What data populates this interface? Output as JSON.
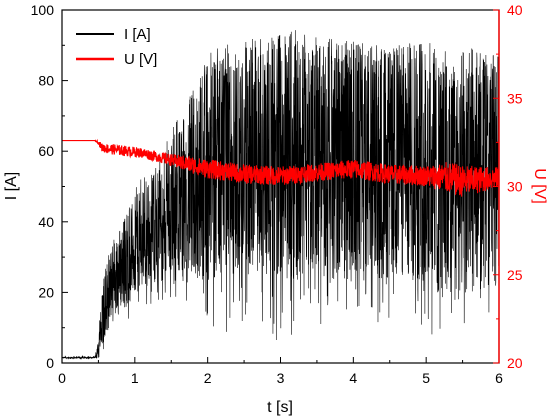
{
  "chart_data": {
    "type": "line",
    "xlabel": "t [s]",
    "ylabel_left": "I [A]",
    "ylabel_right": "U [V]",
    "xlim": [
      0,
      6
    ],
    "ylim_left": [
      0,
      100
    ],
    "ylim_right": [
      20,
      40
    ],
    "x_ticks": [
      0,
      1,
      2,
      3,
      4,
      5,
      6
    ],
    "y_left_ticks": [
      0,
      20,
      40,
      60,
      80,
      100
    ],
    "y_right_ticks": [
      20,
      25,
      30,
      35,
      40
    ],
    "grid": false,
    "legend_placement": "top-left",
    "legend": [
      {
        "label": "I [A]",
        "color": "#000000"
      },
      {
        "label": "U [V]",
        "color": "#ff0000"
      }
    ],
    "series": [
      {
        "name": "I [A]",
        "axis": "left",
        "color": "#000000",
        "style": "noisy",
        "x": [
          0,
          0.25,
          0.45,
          0.5,
          0.55,
          0.6,
          0.7,
          0.8,
          0.9,
          1.0,
          1.2,
          1.4,
          1.6,
          1.8,
          2.0,
          2.2,
          2.5,
          2.8,
          3.0,
          3.3,
          3.6,
          4.0,
          4.3,
          4.6,
          5.0,
          5.3,
          5.6,
          6.0
        ],
        "mean": [
          1.5,
          1.5,
          1.5,
          4,
          12,
          18,
          23,
          27,
          30,
          33,
          37,
          41,
          45,
          50,
          55,
          58,
          58,
          58,
          60,
          58,
          58,
          58,
          57,
          57,
          58,
          50,
          55,
          55
        ],
        "amp": [
          0.2,
          0.2,
          0.2,
          3,
          8,
          10,
          12,
          12,
          14,
          14,
          15,
          18,
          22,
          28,
          32,
          33,
          33,
          34,
          35,
          35,
          34,
          35,
          34,
          33,
          35,
          35,
          35,
          33
        ],
        "max": [
          2,
          2,
          2,
          8,
          20,
          28,
          35,
          40,
          45,
          50,
          55,
          62,
          70,
          82,
          89,
          90,
          92,
          93,
          95,
          94,
          92,
          91,
          90,
          90,
          92,
          88,
          90,
          88
        ],
        "min": [
          1,
          1,
          1,
          0,
          2,
          5,
          8,
          10,
          12,
          14,
          15,
          18,
          15,
          10,
          8,
          8,
          10,
          10,
          5,
          10,
          10,
          8,
          10,
          10,
          8,
          5,
          12,
          14
        ]
      },
      {
        "name": "U [V]",
        "axis": "right",
        "color": "#ff0000",
        "style": "noisy",
        "x": [
          0,
          0.45,
          0.5,
          0.55,
          0.7,
          0.9,
          1.1,
          1.3,
          1.5,
          1.7,
          2.0,
          2.5,
          3.0,
          3.5,
          4.0,
          4.5,
          5.0,
          5.3,
          5.5,
          6.0
        ],
        "mean": [
          32.6,
          32.6,
          32.5,
          32.2,
          32.1,
          32.0,
          31.9,
          31.7,
          31.5,
          31.3,
          31.0,
          30.7,
          30.6,
          30.8,
          31.0,
          30.7,
          30.6,
          30.5,
          30.3,
          30.5
        ],
        "amp": [
          0,
          0,
          0.1,
          0.25,
          0.3,
          0.3,
          0.3,
          0.3,
          0.35,
          0.45,
          0.55,
          0.55,
          0.55,
          0.5,
          0.55,
          0.55,
          0.6,
          0.9,
          0.9,
          0.6
        ]
      }
    ]
  }
}
